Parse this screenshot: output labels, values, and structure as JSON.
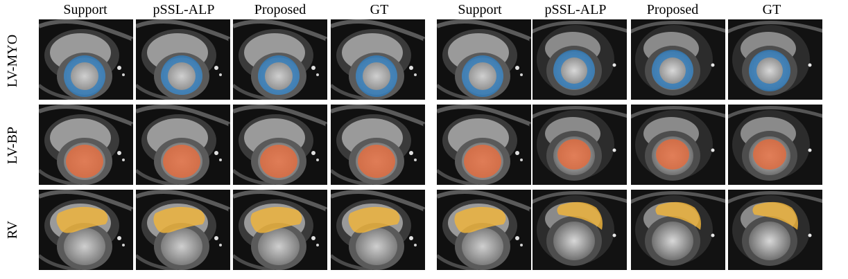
{
  "column_headers_left": [
    "Support",
    "pSSL-ALP",
    "Proposed",
    "GT"
  ],
  "column_headers_right": [
    "Support",
    "pSSL-ALP",
    "Proposed",
    "GT"
  ],
  "row_labels": [
    "LV-MYO",
    "LV-BP",
    "RV"
  ],
  "overlay_colors": {
    "lv_myo": "#2f7fc1",
    "lv_bp": "#e36a3c",
    "rv": "#f0b43a"
  }
}
